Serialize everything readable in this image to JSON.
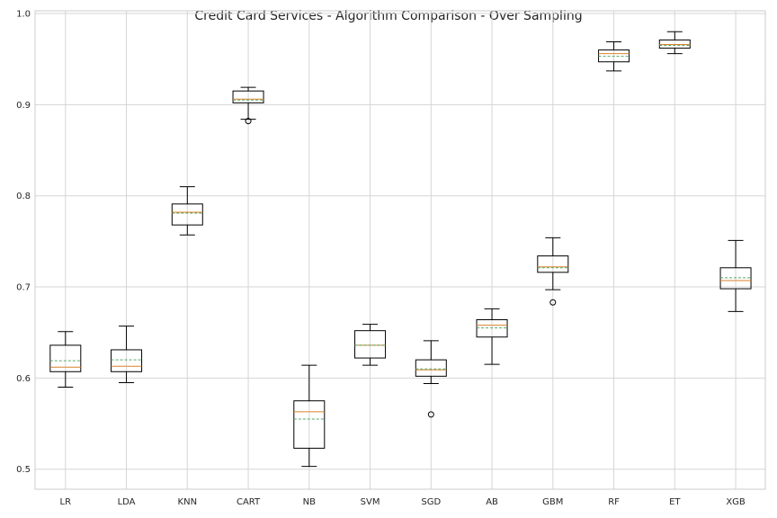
{
  "chart_data": {
    "type": "box",
    "title": "Credit Card Services - Algorithm Comparison - Over Sampling",
    "xlabel": "",
    "ylabel": "",
    "ylim": [
      0.478,
      1.003
    ],
    "yticks": [
      0.5,
      0.6,
      0.7,
      0.8,
      0.9,
      1.0
    ],
    "ytick_labels": [
      "0.5",
      "0.6",
      "0.7",
      "0.8",
      "0.9",
      "1.0"
    ],
    "grid": true,
    "colors": {
      "box": "#000000",
      "median": "#d9822b",
      "mean": "#55a868",
      "grid": "#d5d5d5",
      "frame": "#cccccc"
    },
    "categories": [
      "LR",
      "LDA",
      "KNN",
      "CART",
      "NB",
      "SVM",
      "SGD",
      "AB",
      "GBM",
      "RF",
      "ET",
      "XGB"
    ],
    "boxes": [
      {
        "label": "LR",
        "whislo": 0.59,
        "q1": 0.607,
        "med": 0.612,
        "q3": 0.636,
        "whishi": 0.651,
        "mean": 0.619,
        "fliers": []
      },
      {
        "label": "LDA",
        "whislo": 0.595,
        "q1": 0.607,
        "med": 0.613,
        "q3": 0.631,
        "whishi": 0.657,
        "mean": 0.62,
        "fliers": []
      },
      {
        "label": "KNN",
        "whislo": 0.757,
        "q1": 0.768,
        "med": 0.782,
        "q3": 0.791,
        "whishi": 0.81,
        "mean": 0.781,
        "fliers": []
      },
      {
        "label": "CART",
        "whislo": 0.884,
        "q1": 0.902,
        "med": 0.906,
        "q3": 0.915,
        "whishi": 0.919,
        "mean": 0.905,
        "fliers": [
          0.882
        ]
      },
      {
        "label": "NB",
        "whislo": 0.503,
        "q1": 0.523,
        "med": 0.563,
        "q3": 0.575,
        "whishi": 0.614,
        "mean": 0.555,
        "fliers": []
      },
      {
        "label": "SVM",
        "whislo": 0.614,
        "q1": 0.622,
        "med": 0.636,
        "q3": 0.652,
        "whishi": 0.659,
        "mean": 0.636,
        "fliers": []
      },
      {
        "label": "SGD",
        "whislo": 0.594,
        "q1": 0.602,
        "med": 0.609,
        "q3": 0.62,
        "whishi": 0.641,
        "mean": 0.61,
        "fliers": [
          0.56
        ]
      },
      {
        "label": "AB",
        "whislo": 0.615,
        "q1": 0.645,
        "med": 0.658,
        "q3": 0.664,
        "whishi": 0.676,
        "mean": 0.655,
        "fliers": []
      },
      {
        "label": "GBM",
        "whislo": 0.697,
        "q1": 0.716,
        "med": 0.722,
        "q3": 0.734,
        "whishi": 0.754,
        "mean": 0.721,
        "fliers": [
          0.683
        ]
      },
      {
        "label": "RF",
        "whislo": 0.937,
        "q1": 0.947,
        "med": 0.956,
        "q3": 0.96,
        "whishi": 0.969,
        "mean": 0.953,
        "fliers": []
      },
      {
        "label": "ET",
        "whislo": 0.956,
        "q1": 0.962,
        "med": 0.966,
        "q3": 0.971,
        "whishi": 0.98,
        "mean": 0.965,
        "fliers": []
      },
      {
        "label": "XGB",
        "whislo": 0.673,
        "q1": 0.698,
        "med": 0.707,
        "q3": 0.721,
        "whishi": 0.751,
        "mean": 0.71,
        "fliers": []
      }
    ]
  }
}
